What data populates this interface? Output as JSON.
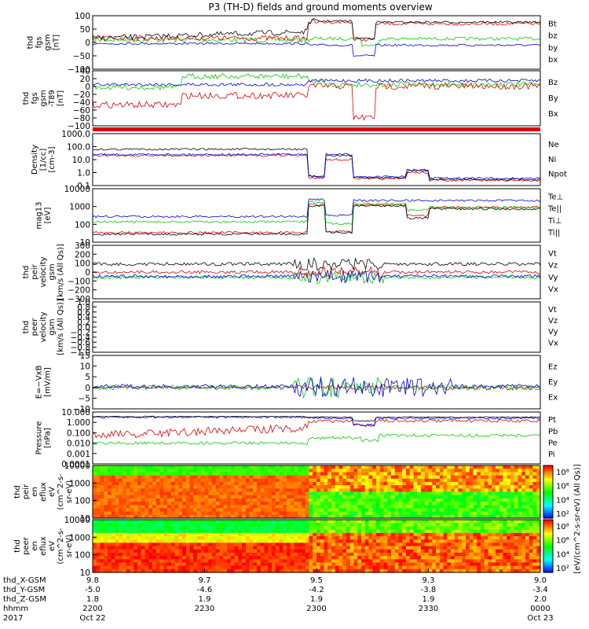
{
  "title": "P3 (TH-D) fields and ground moments overview",
  "colors": {
    "black": "#000000",
    "red": "#e00000",
    "green": "#00d000",
    "blue": "#0000e0"
  },
  "time_axis": {
    "ticks_hhmm": [
      "2200",
      "2230",
      "2300",
      "2330",
      "0000"
    ],
    "rows": [
      {
        "label": "thd_X-GSM",
        "values": [
          "9.8",
          "9.7",
          "9.5",
          "9.3",
          "9.0"
        ]
      },
      {
        "label": "thd_Y-GSM",
        "values": [
          "-5.0",
          "-4.6",
          "-4.2",
          "-3.8",
          "-3.4"
        ]
      },
      {
        "label": "thd_Z-GSM",
        "values": [
          "1.8",
          "1.9",
          "1.9",
          "1.9",
          "2.0"
        ]
      },
      {
        "label": "hhmm",
        "values": [
          "2200",
          "2230",
          "2300",
          "2330",
          "0000"
        ]
      },
      {
        "label": "2017",
        "values": [
          "Oct 22",
          "",
          "",
          "",
          "Oct 23"
        ]
      }
    ]
  },
  "chart_data": [
    {
      "type": "line",
      "ylabel": [
        "thd",
        "fgs",
        "gsm",
        "[nT]"
      ],
      "ylim": [
        -100,
        100
      ],
      "yticks": [
        "100",
        "50",
        "0",
        "−50",
        "−100"
      ],
      "legend": [
        {
          "name": "Bt",
          "color": "#000000"
        },
        {
          "name": "bz",
          "color": "#e00000"
        },
        {
          "name": "by",
          "color": "#00d000"
        },
        {
          "name": "bx",
          "color": "#0000e0"
        }
      ]
    },
    {
      "type": "line",
      "ylabel": [
        "thd",
        "fgs",
        "gsm",
        "-T89",
        "[nT]"
      ],
      "ylim": [
        -100,
        40
      ],
      "yticks": [
        "40",
        "20",
        "0",
        "−20",
        "−40",
        "−60",
        "−80",
        "−100"
      ],
      "legend": [
        {
          "name": "Bz",
          "color": "#e00000"
        },
        {
          "name": "By",
          "color": "#00d000"
        },
        {
          "name": "Bx",
          "color": "#0000e0"
        }
      ]
    },
    {
      "type": "line",
      "ylabel": [
        "Density",
        "[1/cc]",
        "[cm-3]"
      ],
      "ylim": [
        0.1,
        1000
      ],
      "log": true,
      "yticks": [
        "1000.0",
        "100.0",
        "10.0",
        "1.0",
        "0.1"
      ],
      "legend": [
        {
          "name": "Ne",
          "color": "#e00000"
        },
        {
          "name": "Ni",
          "color": "#000000"
        },
        {
          "name": "Npot",
          "color": "#0000e0"
        }
      ]
    },
    {
      "type": "line",
      "ylabel": [
        "mag13",
        "[eV]"
      ],
      "ylim": [
        10,
        10000
      ],
      "log": true,
      "yticks": [
        "10000",
        "1000",
        "100",
        "10"
      ],
      "legend": [
        {
          "name": "Te⊥",
          "color": "#e00000"
        },
        {
          "name": "Te||",
          "color": "#000000"
        },
        {
          "name": "Ti⊥",
          "color": "#0000e0"
        },
        {
          "name": "Ti||",
          "color": "#00d000"
        }
      ]
    },
    {
      "type": "line",
      "ylabel": [
        "thd",
        "peir",
        "velocity",
        "gsm",
        "[km/s (All Qs)]"
      ],
      "ylim": [
        -300,
        300
      ],
      "yticks": [
        "300",
        "200",
        "100",
        "0",
        "−100",
        "−200",
        "−300"
      ],
      "legend": [
        {
          "name": "Vt",
          "color": "#000000"
        },
        {
          "name": "Vz",
          "color": "#e00000"
        },
        {
          "name": "Vy",
          "color": "#00d000"
        },
        {
          "name": "Vx",
          "color": "#0000e0"
        }
      ]
    },
    {
      "type": "line",
      "ylabel": [
        "thd",
        "peer",
        "velocity",
        "gsm",
        "[km/s (All Qs)]"
      ],
      "ylim": [
        -1.0,
        1.0
      ],
      "yticks": [
        "1.0",
        "0.8",
        "0.6",
        "0.4",
        "0.2",
        "0.0",
        "−0.2",
        "−0.4",
        "−0.6",
        "−0.8",
        "−1.0"
      ],
      "legend": [
        {
          "name": "Vt",
          "color": "#000000"
        },
        {
          "name": "Vz",
          "color": "#e00000"
        },
        {
          "name": "Vy",
          "color": "#00d000"
        },
        {
          "name": "Vx",
          "color": "#0000e0"
        }
      ]
    },
    {
      "type": "line",
      "ylabel": [
        "E=−VxB",
        "[mV/m]"
      ],
      "ylim": [
        -10,
        15
      ],
      "yticks": [
        "15",
        "10",
        "5",
        "0",
        "−5",
        "−10"
      ],
      "legend": [
        {
          "name": "Ez",
          "color": "#e00000"
        },
        {
          "name": "Ey",
          "color": "#00d000"
        },
        {
          "name": "Ex",
          "color": "#0000e0"
        }
      ]
    },
    {
      "type": "line",
      "ylabel": [
        "Pressure",
        "[nPa]"
      ],
      "ylim": [
        0.0001,
        10
      ],
      "log": true,
      "yticks": [
        "10.000",
        "1.000",
        "0.100",
        "0.010",
        "0.001",
        "0.0001"
      ],
      "legend": [
        {
          "name": "Pt",
          "color": "#000000"
        },
        {
          "name": "Pb",
          "color": "#e00000"
        },
        {
          "name": "Pe",
          "color": "#00d000"
        },
        {
          "name": "Pi",
          "color": "#0000e0"
        }
      ]
    },
    {
      "type": "heatmap",
      "ylabel": [
        "thd",
        "peir",
        "en",
        "eflux",
        "eV",
        "(cm^2-s-",
        "sr-eV)"
      ],
      "ylim": [
        5,
        20000
      ],
      "log": true,
      "yticks": [
        "10000",
        "1000",
        "100",
        "10"
      ]
    },
    {
      "type": "heatmap",
      "ylabel": [
        "thd",
        "peer",
        "en",
        "eflux",
        "eV",
        "(cm^2-s-",
        "sr-eV)"
      ],
      "ylim": [
        5,
        20000
      ],
      "log": true,
      "yticks": [
        "10000",
        "1000",
        "100",
        "10"
      ]
    }
  ],
  "colorbar": {
    "label": "[eV/(cm^2-s-sr-eV) (All Qs)]",
    "ticks_top": [
      "10⁸",
      "10⁶",
      "10⁴",
      "10²"
    ],
    "ticks_bottom": [
      "10⁸",
      "10⁶",
      "10⁴",
      "10²"
    ]
  }
}
